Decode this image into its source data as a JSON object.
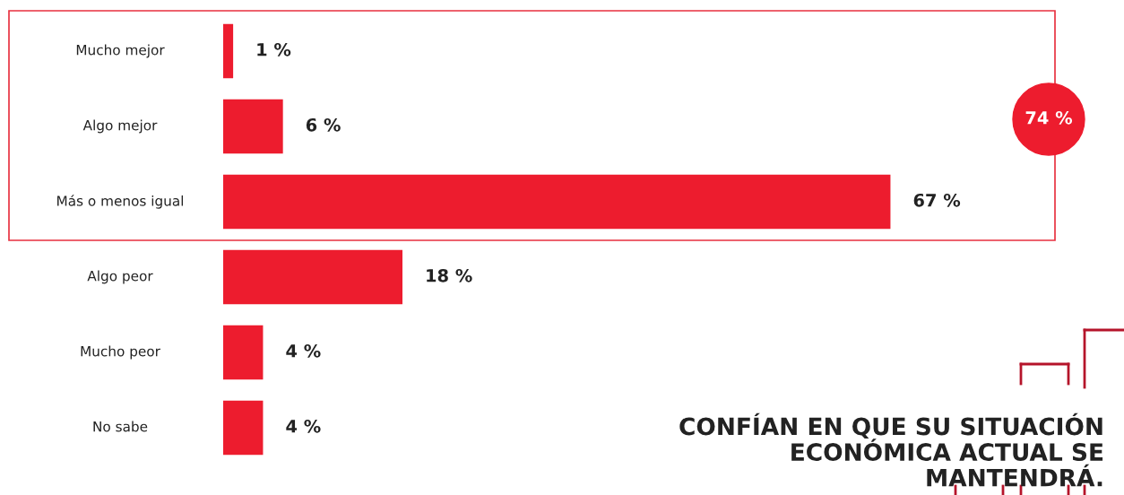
{
  "chart_data": {
    "type": "bar",
    "orientation": "horizontal",
    "categories": [
      "Mucho mejor",
      "Algo mejor",
      "Más o menos igual",
      "Algo peor",
      "Mucho peor",
      "No sabe"
    ],
    "values": [
      1,
      6,
      67,
      18,
      4,
      4
    ],
    "value_labels": [
      "1 %",
      "6 %",
      "67 %",
      "18 %",
      "4 %",
      "4 %"
    ],
    "color": "#ed1c2e",
    "annotations": [
      "74 %",
      "CONFÍAN EN QUE SU SITUACIÓN\nECONÓMICA ACTUAL SE\nMANTENDRÁ."
    ],
    "legend": false
  }
}
